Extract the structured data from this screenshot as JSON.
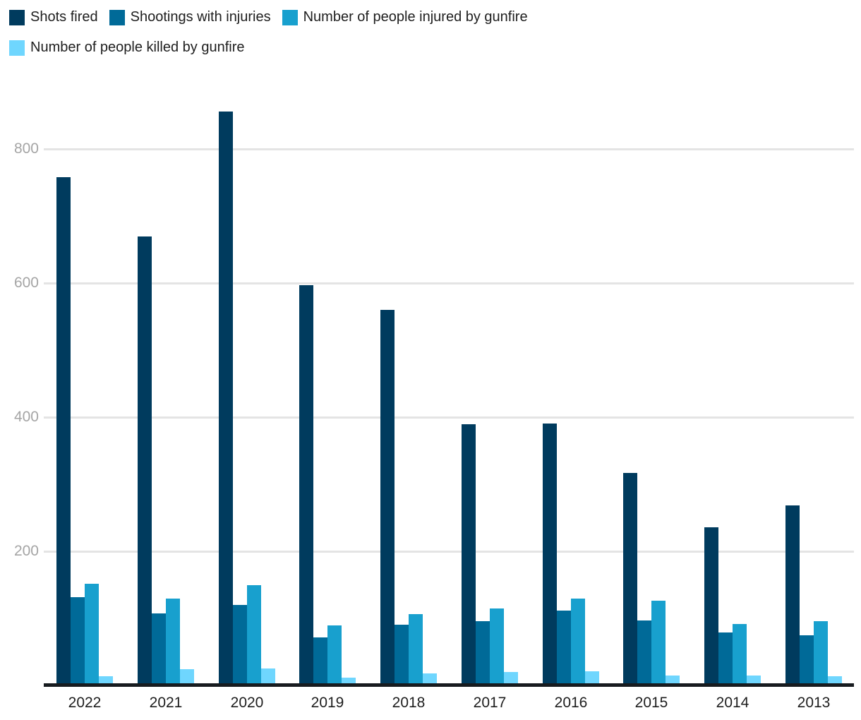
{
  "chart_data": {
    "type": "bar",
    "variant": "grouped-vertical",
    "categories": [
      "2022",
      "2021",
      "2020",
      "2019",
      "2018",
      "2017",
      "2016",
      "2015",
      "2014",
      "2013"
    ],
    "series": [
      {
        "name": "Shots fired",
        "color": "#003b5e",
        "values": [
          757,
          668,
          855,
          596,
          559,
          388,
          389,
          316,
          235,
          267
        ]
      },
      {
        "name": "Shootings with injuries",
        "color": "#006a98",
        "values": [
          130,
          106,
          119,
          70,
          89,
          95,
          110,
          96,
          78,
          74
        ]
      },
      {
        "name": "Number of people injured by gunfire",
        "color": "#18a0ce",
        "values": [
          150,
          128,
          148,
          88,
          105,
          114,
          128,
          125,
          90,
          95
        ]
      },
      {
        "name": "Number of people killed by gunfire",
        "color": "#6fd6fe",
        "values": [
          13,
          23,
          24,
          11,
          17,
          19,
          20,
          14,
          14,
          13
        ]
      }
    ],
    "y_ticks": [
      {
        "value": 200,
        "label": "200"
      },
      {
        "value": 400,
        "label": "400"
      },
      {
        "value": 600,
        "label": "600"
      },
      {
        "value": 800,
        "label": "800"
      }
    ],
    "ylim": [
      0,
      900
    ],
    "grid": "horizontal",
    "legend_position": "top-left",
    "title": "",
    "xlabel": "",
    "ylabel": ""
  },
  "colors": {
    "background": "#ffffff",
    "gridline": "#e4e4e4",
    "axis_line": "#171b1f",
    "y_tick_label": "#a5a5a5",
    "x_tick_label": "#1e1e1e",
    "legend_text": "#1e1e1e"
  }
}
